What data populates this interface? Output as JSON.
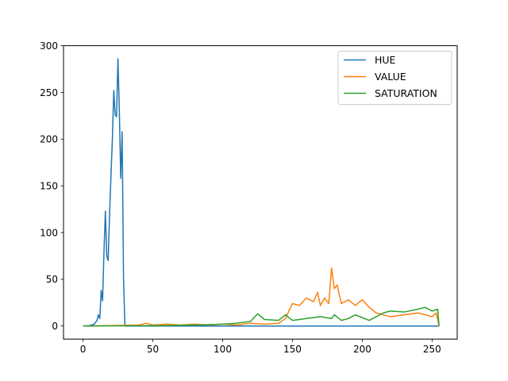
{
  "chart_data": {
    "type": "line",
    "title": "",
    "xlabel": "",
    "ylabel": "",
    "xlim": [
      -14,
      268
    ],
    "ylim": [
      -14,
      300
    ],
    "x_ticks": [
      0,
      50,
      100,
      150,
      200,
      250
    ],
    "y_ticks": [
      0,
      50,
      100,
      150,
      200,
      250,
      300
    ],
    "grid": false,
    "legend_position": "top-right",
    "series": [
      {
        "name": "HUE",
        "color": "#1f77b4",
        "points": [
          [
            0,
            0
          ],
          [
            5,
            0.5
          ],
          [
            8,
            2
          ],
          [
            10,
            6
          ],
          [
            11,
            12
          ],
          [
            12,
            8
          ],
          [
            13,
            38
          ],
          [
            14,
            27
          ],
          [
            15,
            80
          ],
          [
            16,
            123
          ],
          [
            17,
            75
          ],
          [
            18,
            70
          ],
          [
            19,
            120
          ],
          [
            20,
            160
          ],
          [
            21,
            200
          ],
          [
            22,
            252
          ],
          [
            23,
            226
          ],
          [
            24,
            224
          ],
          [
            25,
            286
          ],
          [
            26,
            230
          ],
          [
            27,
            158
          ],
          [
            28,
            208
          ],
          [
            29,
            50
          ],
          [
            30,
            0
          ],
          [
            255,
            0
          ]
        ]
      },
      {
        "name": "VALUE",
        "color": "#ff7f0e",
        "points": [
          [
            0,
            0
          ],
          [
            40,
            1
          ],
          [
            45,
            3
          ],
          [
            50,
            1
          ],
          [
            60,
            2
          ],
          [
            70,
            1
          ],
          [
            80,
            2
          ],
          [
            90,
            1
          ],
          [
            100,
            2
          ],
          [
            110,
            1
          ],
          [
            120,
            3
          ],
          [
            130,
            2
          ],
          [
            140,
            3
          ],
          [
            145,
            8
          ],
          [
            148,
            18
          ],
          [
            150,
            24
          ],
          [
            155,
            22
          ],
          [
            160,
            30
          ],
          [
            165,
            26
          ],
          [
            168,
            36
          ],
          [
            170,
            22
          ],
          [
            173,
            30
          ],
          [
            176,
            24
          ],
          [
            178,
            62
          ],
          [
            180,
            40
          ],
          [
            182,
            44
          ],
          [
            185,
            24
          ],
          [
            190,
            28
          ],
          [
            195,
            22
          ],
          [
            200,
            28
          ],
          [
            205,
            20
          ],
          [
            210,
            14
          ],
          [
            215,
            12
          ],
          [
            220,
            10
          ],
          [
            230,
            12
          ],
          [
            240,
            14
          ],
          [
            250,
            10
          ],
          [
            253,
            14
          ],
          [
            255,
            0
          ]
        ]
      },
      {
        "name": "SATURATION",
        "color": "#2ca02c",
        "points": [
          [
            0,
            0
          ],
          [
            60,
            0.5
          ],
          [
            80,
            1
          ],
          [
            100,
            2
          ],
          [
            110,
            3
          ],
          [
            120,
            5
          ],
          [
            125,
            13
          ],
          [
            130,
            7
          ],
          [
            140,
            6
          ],
          [
            145,
            12
          ],
          [
            150,
            6
          ],
          [
            160,
            8
          ],
          [
            170,
            10
          ],
          [
            178,
            8
          ],
          [
            180,
            12
          ],
          [
            185,
            6
          ],
          [
            190,
            8
          ],
          [
            195,
            12
          ],
          [
            200,
            9
          ],
          [
            205,
            6
          ],
          [
            210,
            10
          ],
          [
            215,
            14
          ],
          [
            220,
            16
          ],
          [
            230,
            15
          ],
          [
            240,
            18
          ],
          [
            245,
            20
          ],
          [
            250,
            16
          ],
          [
            254,
            18
          ],
          [
            255,
            0
          ]
        ]
      }
    ]
  }
}
